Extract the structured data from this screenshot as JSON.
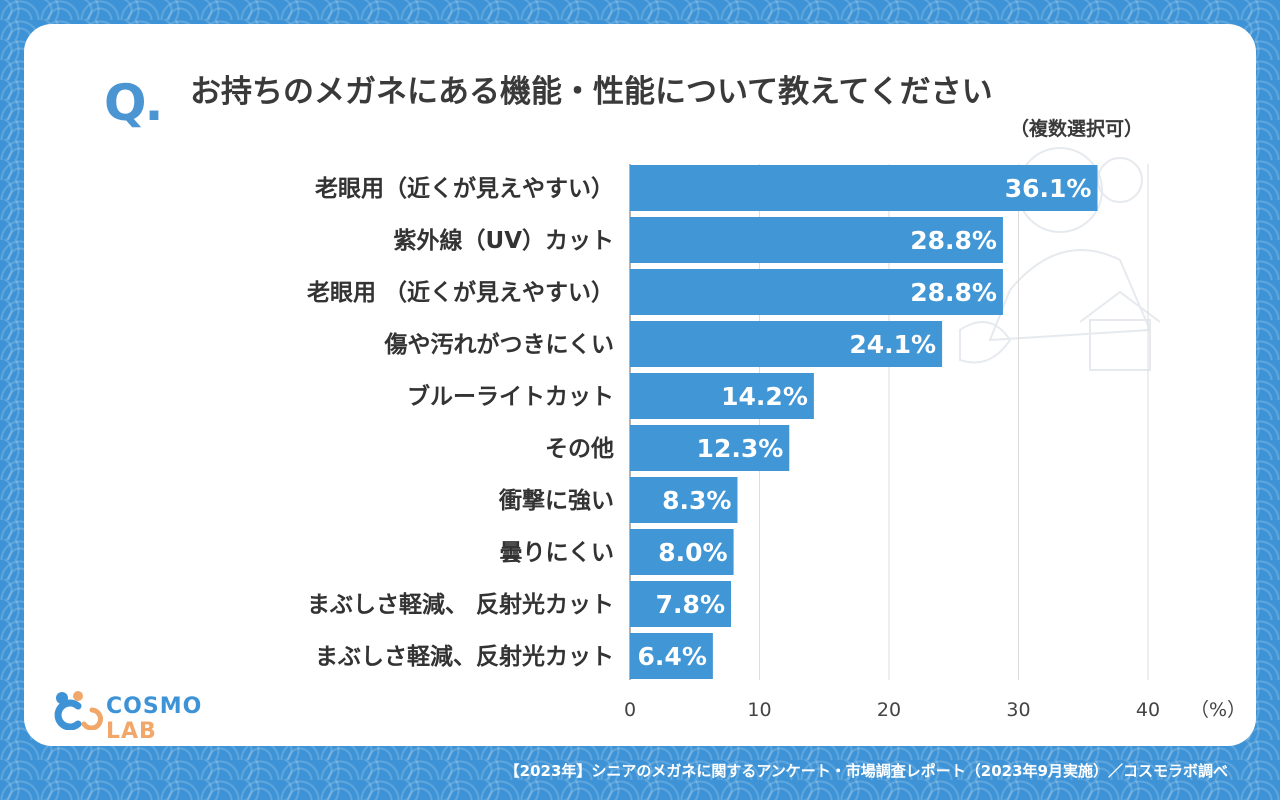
{
  "header": {
    "q_mark": "Q.",
    "title": "お持ちのメガネにある機能・性能について教えてください",
    "subtitle": "（複数選択可）"
  },
  "chart_data": {
    "type": "bar",
    "orientation": "horizontal",
    "categories": [
      "老眼用（近くが見えやすい）",
      "紫外線（UV）カット",
      "老眼用 （近くが見えやすい）",
      "傷や汚れがつきにくい",
      "ブルーライトカット",
      "その他",
      "衝撃に強い",
      "曇りにくい",
      "まぶしさ軽減、 反射光カット",
      "まぶしさ軽減、反射光カット"
    ],
    "values": [
      36.1,
      28.8,
      28.8,
      24.1,
      14.2,
      12.3,
      8.3,
      8.0,
      7.8,
      6.4
    ],
    "value_labels": [
      "36.1%",
      "28.8%",
      "28.8%",
      "24.1%",
      "14.2%",
      "12.3%",
      "8.3%",
      "8.0%",
      "7.8%",
      "6.4%"
    ],
    "xlim": [
      0,
      40
    ],
    "xticks": [
      0,
      10,
      20,
      30,
      40
    ],
    "xtick_labels": [
      "0",
      "10",
      "20",
      "30",
      "40"
    ],
    "xunit": "（%）",
    "grid": true,
    "bar_color": "#4196d6"
  },
  "logo": {
    "main": "COSMO",
    "sub": "LAB"
  },
  "footer": "【2023年】シニアのメガネに関するアンケート・市場調査レポート（2023年9月実施）／コスモラボ調べ"
}
